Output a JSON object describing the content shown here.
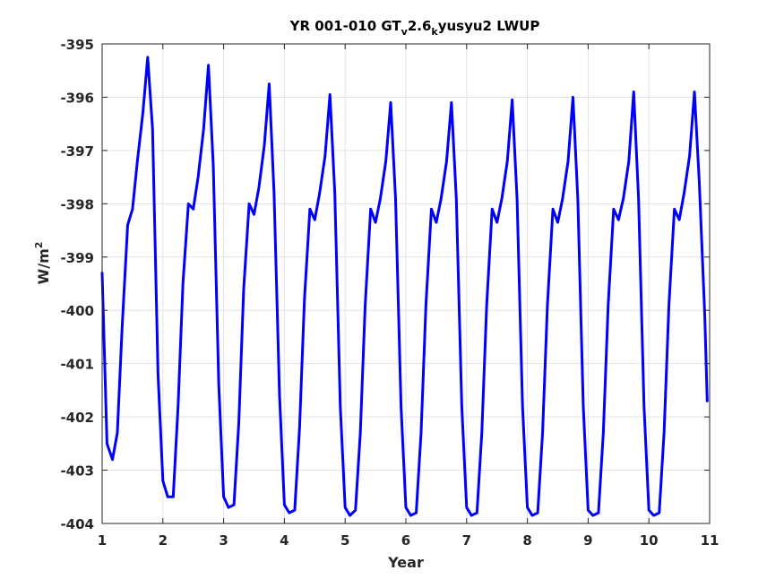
{
  "chart_data": {
    "type": "line",
    "title": {
      "parts": [
        {
          "text": "YR 001-010 GT",
          "sub": false
        },
        {
          "text": "v",
          "sub": true
        },
        {
          "text": "2.6",
          "sub": false
        },
        {
          "text": "k",
          "sub": true
        },
        {
          "text": "yusyu2 LWUP",
          "sub": false
        }
      ]
    },
    "xlabel": "Year",
    "ylabel": {
      "base": "W/m",
      "sup": "2"
    },
    "xlim": [
      1,
      11
    ],
    "ylim": [
      -404,
      -395
    ],
    "xticks": [
      1,
      2,
      3,
      4,
      5,
      6,
      7,
      8,
      9,
      10,
      11
    ],
    "yticks": [
      -404,
      -403,
      -402,
      -401,
      -400,
      -399,
      -398,
      -397,
      -396,
      -395
    ],
    "grid": true,
    "series": [
      {
        "color": "#0000ff",
        "x": [
          1.0,
          1.04,
          1.08,
          1.17,
          1.25,
          1.33,
          1.42,
          1.5,
          1.58,
          1.67,
          1.75,
          1.83,
          1.92,
          2.0,
          2.08,
          2.17,
          2.25,
          2.33,
          2.42,
          2.5,
          2.58,
          2.67,
          2.75,
          2.83,
          2.92,
          3.0,
          3.08,
          3.17,
          3.25,
          3.33,
          3.42,
          3.5,
          3.58,
          3.67,
          3.75,
          3.83,
          3.92,
          4.0,
          4.08,
          4.17,
          4.25,
          4.33,
          4.42,
          4.5,
          4.58,
          4.67,
          4.75,
          4.83,
          4.92,
          5.0,
          5.08,
          5.17,
          5.25,
          5.33,
          5.42,
          5.5,
          5.58,
          5.67,
          5.75,
          5.83,
          5.92,
          6.0,
          6.08,
          6.17,
          6.25,
          6.33,
          6.42,
          6.5,
          6.58,
          6.67,
          6.75,
          6.83,
          6.92,
          7.0,
          7.08,
          7.17,
          7.25,
          7.33,
          7.42,
          7.5,
          7.58,
          7.67,
          7.75,
          7.83,
          7.92,
          8.0,
          8.08,
          8.17,
          8.25,
          8.33,
          8.42,
          8.5,
          8.58,
          8.67,
          8.75,
          8.83,
          8.92,
          9.0,
          9.08,
          9.17,
          9.25,
          9.33,
          9.42,
          9.5,
          9.58,
          9.67,
          9.75,
          9.83,
          9.92,
          10.0,
          10.08,
          10.17,
          10.25,
          10.33,
          10.42,
          10.5,
          10.58,
          10.67,
          10.75,
          10.83,
          10.92,
          10.96
        ],
        "y": [
          -399.3,
          -400.9,
          -402.5,
          -402.8,
          -402.3,
          -400.3,
          -398.4,
          -398.1,
          -397.2,
          -396.3,
          -395.25,
          -396.6,
          -401.2,
          -403.2,
          -403.5,
          -403.5,
          -401.8,
          -399.5,
          -398.0,
          -398.1,
          -397.5,
          -396.6,
          -395.4,
          -397.3,
          -401.4,
          -403.5,
          -403.7,
          -403.65,
          -402.1,
          -399.6,
          -398.0,
          -398.2,
          -397.7,
          -396.9,
          -395.75,
          -397.8,
          -401.6,
          -403.65,
          -403.8,
          -403.75,
          -402.2,
          -399.8,
          -398.1,
          -398.3,
          -397.8,
          -397.1,
          -395.95,
          -397.8,
          -401.8,
          -403.7,
          -403.85,
          -403.75,
          -402.3,
          -399.9,
          -398.1,
          -398.35,
          -397.9,
          -397.2,
          -396.1,
          -397.9,
          -401.8,
          -403.7,
          -403.85,
          -403.8,
          -402.3,
          -399.9,
          -398.1,
          -398.35,
          -397.9,
          -397.2,
          -396.1,
          -397.9,
          -401.8,
          -403.7,
          -403.85,
          -403.8,
          -402.3,
          -399.9,
          -398.1,
          -398.35,
          -397.9,
          -397.2,
          -396.05,
          -397.9,
          -401.8,
          -403.7,
          -403.85,
          -403.8,
          -402.3,
          -399.9,
          -398.1,
          -398.35,
          -397.9,
          -397.2,
          -396.0,
          -397.9,
          -401.8,
          -403.75,
          -403.85,
          -403.8,
          -402.3,
          -399.9,
          -398.1,
          -398.3,
          -397.9,
          -397.2,
          -395.9,
          -397.9,
          -401.8,
          -403.75,
          -403.85,
          -403.8,
          -402.3,
          -399.9,
          -398.1,
          -398.3,
          -397.8,
          -397.1,
          -395.9,
          -397.6,
          -400.1,
          -401.7
        ]
      }
    ]
  }
}
